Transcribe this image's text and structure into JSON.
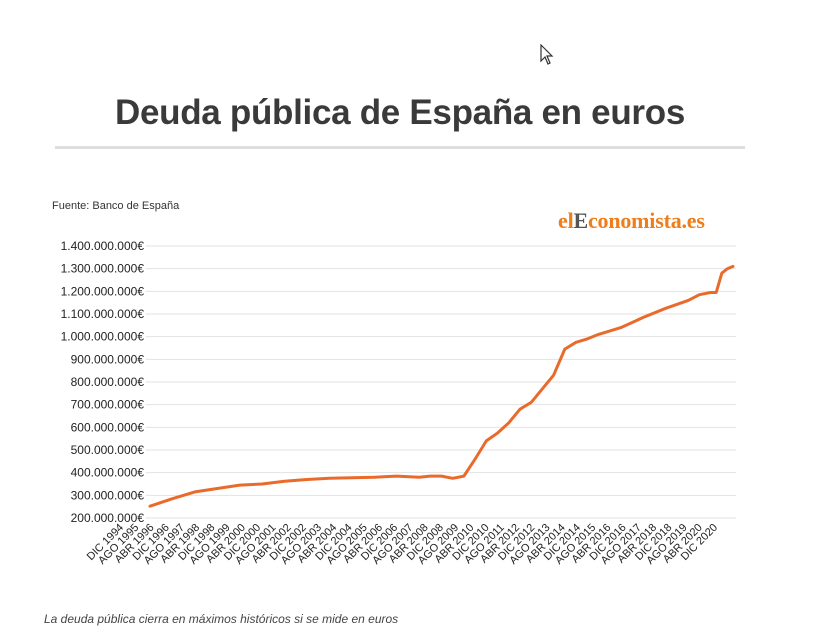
{
  "title": "Deuda pública de España en euros",
  "source": "Fuente: Banco de España",
  "logo": {
    "part1": "el",
    "part2": "E",
    "part3": "conomista.es"
  },
  "caption": "La deuda pública cierra en máximos históricos si se mide en euros",
  "colors": {
    "line": "#ea6a2c",
    "grid": "#e2e2e2",
    "logo": "#ef7d1a"
  },
  "chart_data": {
    "type": "line",
    "title": "Deuda pública de España en euros",
    "xlabel": "",
    "ylabel": "",
    "ylim": [
      200000000000,
      1400000000000
    ],
    "grid": true,
    "y_ticks": [
      "200.000.000€",
      "300.000.000€",
      "400.000.000€",
      "500.000.000€",
      "600.000.000€",
      "700.000.000€",
      "800.000.000€",
      "900.000.000€",
      "1.000.000.000€",
      "1.100.000.000€",
      "1.200.000.000€",
      "1.300.000.000€",
      "1.400.000.000€"
    ],
    "x_ticks": [
      "DIC 1994",
      "AGO 1995",
      "ABR 1996",
      "DIC 1996",
      "AGO 1997",
      "ABR 1998",
      "DIC 1998",
      "AGO 1999",
      "ABR 2000",
      "DIC 2000",
      "AGO 2001",
      "ABR 2002",
      "DIC 2002",
      "AGO 2003",
      "ABR 2004",
      "DIC 2004",
      "AGO 2005",
      "ABR 2006",
      "DIC 2006",
      "AGO 2007",
      "ABR 2008",
      "DIC 2008",
      "AGO 2009",
      "ABR 2010",
      "DIC 2010",
      "AGO 2011",
      "ABR 2012",
      "DIC 2012",
      "AGO 2013",
      "ABR 2014",
      "DIC 2014",
      "AGO 2015",
      "ABR 2016",
      "DIC 2016",
      "AGO 2017",
      "ABR 2018",
      "DIC 2018",
      "AGO 2019",
      "ABR 2020",
      "DIC 2020"
    ],
    "x": [
      "1994-12",
      "1995-12",
      "1996-12",
      "1997-12",
      "1998-12",
      "1999-12",
      "2000-12",
      "2001-12",
      "2002-12",
      "2003-12",
      "2004-12",
      "2005-12",
      "2006-12",
      "2007-06",
      "2007-12",
      "2008-06",
      "2008-12",
      "2009-06",
      "2009-12",
      "2010-06",
      "2010-12",
      "2011-06",
      "2011-12",
      "2012-06",
      "2012-12",
      "2013-06",
      "2013-12",
      "2014-06",
      "2014-12",
      "2015-12",
      "2016-12",
      "2017-12",
      "2018-12",
      "2019-06",
      "2019-12",
      "2020-03",
      "2020-06",
      "2020-09",
      "2020-12"
    ],
    "series": [
      {
        "values": [
          252000000000,
          285000000000,
          315000000000,
          330000000000,
          345000000000,
          350000000000,
          362000000000,
          370000000000,
          375000000000,
          378000000000,
          380000000000,
          385000000000,
          380000000000,
          385000000000,
          385000000000,
          375000000000,
          385000000000,
          460000000000,
          540000000000,
          575000000000,
          620000000000,
          680000000000,
          710000000000,
          770000000000,
          830000000000,
          945000000000,
          975000000000,
          990000000000,
          1010000000000,
          1040000000000,
          1085000000000,
          1125000000000,
          1160000000000,
          1185000000000,
          1195000000000,
          1195000000000,
          1280000000000,
          1300000000000,
          1310000000000
        ]
      }
    ]
  }
}
